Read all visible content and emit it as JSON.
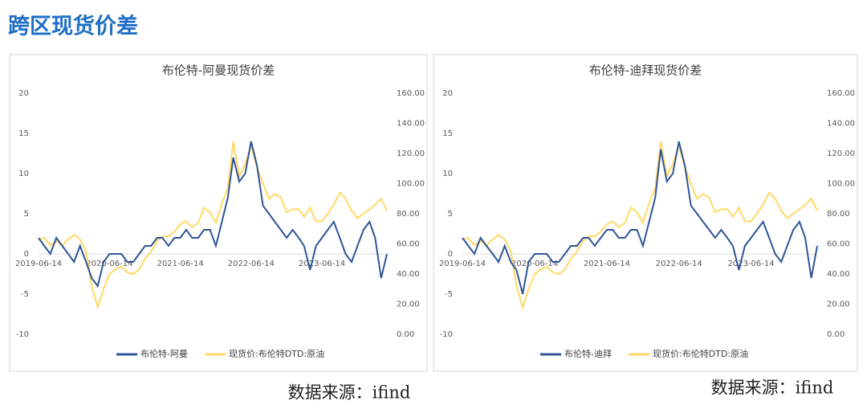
{
  "page_title": "跨区现货价差",
  "sources": [
    "数据来源：ifind",
    "数据来源：ifind"
  ],
  "chart_data": [
    {
      "type": "line",
      "title": "布伦特-阿曼现货价差",
      "x": [
        "2019-06-14",
        "2019-07-14",
        "2019-08-14",
        "2019-09-14",
        "2019-10-14",
        "2019-11-14",
        "2019-12-14",
        "2020-01-14",
        "2020-02-14",
        "2020-03-14",
        "2020-04-14",
        "2020-05-14",
        "2020-06-14",
        "2020-07-14",
        "2020-08-14",
        "2020-09-14",
        "2020-10-14",
        "2020-11-14",
        "2020-12-14",
        "2021-01-14",
        "2021-02-14",
        "2021-03-14",
        "2021-04-14",
        "2021-05-14",
        "2021-06-14",
        "2021-07-14",
        "2021-08-14",
        "2021-09-14",
        "2021-10-14",
        "2021-11-14",
        "2021-12-14",
        "2022-01-14",
        "2022-02-14",
        "2022-03-14",
        "2022-04-14",
        "2022-05-14",
        "2022-06-14",
        "2022-07-14",
        "2022-08-14",
        "2022-09-14",
        "2022-10-14",
        "2022-11-14",
        "2022-12-14",
        "2023-01-14",
        "2023-02-14",
        "2023-03-14",
        "2023-04-14",
        "2023-05-14",
        "2023-06-14",
        "2023-07-14",
        "2023-08-14",
        "2023-09-14",
        "2023-10-14",
        "2023-11-14",
        "2023-12-14",
        "2024-01-14",
        "2024-02-14",
        "2024-03-14",
        "2024-04-14",
        "2024-05-14"
      ],
      "xlim": [
        "2019-06-14",
        "2024-05-14"
      ],
      "xticks": [
        "2019-06-14",
        "2020-06-14",
        "2021-06-14",
        "2022-06-14",
        "2023-06-14"
      ],
      "ylim": [
        -10,
        20
      ],
      "yticks": [
        -10,
        -5,
        0,
        5,
        10,
        15,
        20
      ],
      "y2lim": [
        0,
        160
      ],
      "y2ticks": [
        {
          "value": 0,
          "label": "0.00"
        },
        {
          "value": 20,
          "label": "20.00"
        },
        {
          "value": 40,
          "label": "40.00"
        },
        {
          "value": 60,
          "label": "60.00"
        },
        {
          "value": 80,
          "label": "80.00"
        },
        {
          "value": 100,
          "label": "100.00"
        },
        {
          "value": 120,
          "label": "120.00"
        },
        {
          "value": 140,
          "label": "140.00"
        },
        {
          "value": 160,
          "label": "160.00"
        }
      ],
      "series": [
        {
          "name": "布伦特-阿曼",
          "color": "#2f5597",
          "values": [
            2,
            1,
            0,
            2,
            1,
            0,
            -1,
            1,
            -1,
            -3,
            -4,
            -1,
            0,
            0,
            0,
            -1,
            -1,
            0,
            1,
            1,
            2,
            2,
            1,
            2,
            2,
            3,
            2,
            2,
            3,
            3,
            1,
            4,
            7,
            12,
            9,
            10,
            14,
            11,
            6,
            5,
            4,
            3,
            2,
            3,
            2,
            1,
            -2,
            1,
            2,
            3,
            4,
            2,
            0,
            -1,
            1,
            3,
            4,
            2,
            -3,
            0
          ]
        },
        {
          "name": "现货价:布伦特DTD:原油",
          "color": "#ffd966",
          "axis": "y2",
          "values": [
            63,
            64,
            59,
            62,
            59,
            63,
            66,
            63,
            55,
            32,
            18,
            30,
            40,
            43,
            45,
            41,
            40,
            43,
            50,
            55,
            62,
            65,
            65,
            68,
            73,
            75,
            71,
            74,
            84,
            81,
            74,
            87,
            97,
            128,
            105,
            113,
            125,
            111,
            100,
            90,
            93,
            91,
            81,
            83,
            83,
            78,
            84,
            75,
            75,
            80,
            86,
            94,
            90,
            82,
            77,
            80,
            83,
            86,
            90,
            82
          ]
        }
      ]
    },
    {
      "type": "line",
      "title": "布伦特-迪拜现货价差",
      "x": [
        "2019-06-14",
        "2019-07-14",
        "2019-08-14",
        "2019-09-14",
        "2019-10-14",
        "2019-11-14",
        "2019-12-14",
        "2020-01-14",
        "2020-02-14",
        "2020-03-14",
        "2020-04-14",
        "2020-05-14",
        "2020-06-14",
        "2020-07-14",
        "2020-08-14",
        "2020-09-14",
        "2020-10-14",
        "2020-11-14",
        "2020-12-14",
        "2021-01-14",
        "2021-02-14",
        "2021-03-14",
        "2021-04-14",
        "2021-05-14",
        "2021-06-14",
        "2021-07-14",
        "2021-08-14",
        "2021-09-14",
        "2021-10-14",
        "2021-11-14",
        "2021-12-14",
        "2022-01-14",
        "2022-02-14",
        "2022-03-14",
        "2022-04-14",
        "2022-05-14",
        "2022-06-14",
        "2022-07-14",
        "2022-08-14",
        "2022-09-14",
        "2022-10-14",
        "2022-11-14",
        "2022-12-14",
        "2023-01-14",
        "2023-02-14",
        "2023-03-14",
        "2023-04-14",
        "2023-05-14",
        "2023-06-14",
        "2023-07-14",
        "2023-08-14",
        "2023-09-14",
        "2023-10-14",
        "2023-11-14",
        "2023-12-14",
        "2024-01-14",
        "2024-02-14",
        "2024-03-14",
        "2024-04-14",
        "2024-05-14"
      ],
      "xlim": [
        "2019-06-14",
        "2024-05-14"
      ],
      "xticks": [
        "2019-06-14",
        "2020-06-14",
        "2021-06-14",
        "2022-06-14",
        "2023-06-14"
      ],
      "ylim": [
        -10,
        20
      ],
      "yticks": [
        -10,
        -5,
        0,
        5,
        10,
        15,
        20
      ],
      "y2lim": [
        0,
        160
      ],
      "y2ticks": [
        {
          "value": 0,
          "label": "0.00"
        },
        {
          "value": 20,
          "label": "20.00"
        },
        {
          "value": 40,
          "label": "40.00"
        },
        {
          "value": 60,
          "label": "60.00"
        },
        {
          "value": 80,
          "label": "80.00"
        },
        {
          "value": 100,
          "label": "100.00"
        },
        {
          "value": 120,
          "label": "120.00"
        },
        {
          "value": 140,
          "label": "140.00"
        },
        {
          "value": 160,
          "label": "160.00"
        }
      ],
      "series": [
        {
          "name": "布伦特-迪拜",
          "color": "#2f5597",
          "values": [
            2,
            1,
            0,
            2,
            1,
            0,
            -1,
            1,
            -1,
            -2,
            -5,
            -1,
            0,
            0,
            0,
            -1,
            -1,
            0,
            1,
            1,
            2,
            2,
            1,
            2,
            3,
            3,
            2,
            2,
            3,
            3,
            1,
            4,
            7,
            13,
            9,
            10,
            14,
            11,
            6,
            5,
            4,
            3,
            2,
            3,
            2,
            1,
            -2,
            1,
            2,
            3,
            4,
            2,
            0,
            -1,
            1,
            3,
            4,
            2,
            -3,
            1
          ]
        },
        {
          "name": "现货价:布伦特DTD:原油",
          "color": "#ffd966",
          "axis": "y2",
          "values": [
            63,
            64,
            59,
            62,
            59,
            63,
            66,
            63,
            55,
            32,
            18,
            30,
            40,
            43,
            45,
            41,
            40,
            43,
            50,
            55,
            62,
            65,
            65,
            68,
            73,
            75,
            71,
            74,
            84,
            81,
            74,
            87,
            97,
            128,
            105,
            113,
            125,
            111,
            100,
            90,
            93,
            91,
            81,
            83,
            83,
            78,
            84,
            75,
            75,
            80,
            86,
            94,
            90,
            82,
            77,
            80,
            83,
            86,
            90,
            82
          ]
        }
      ]
    }
  ]
}
